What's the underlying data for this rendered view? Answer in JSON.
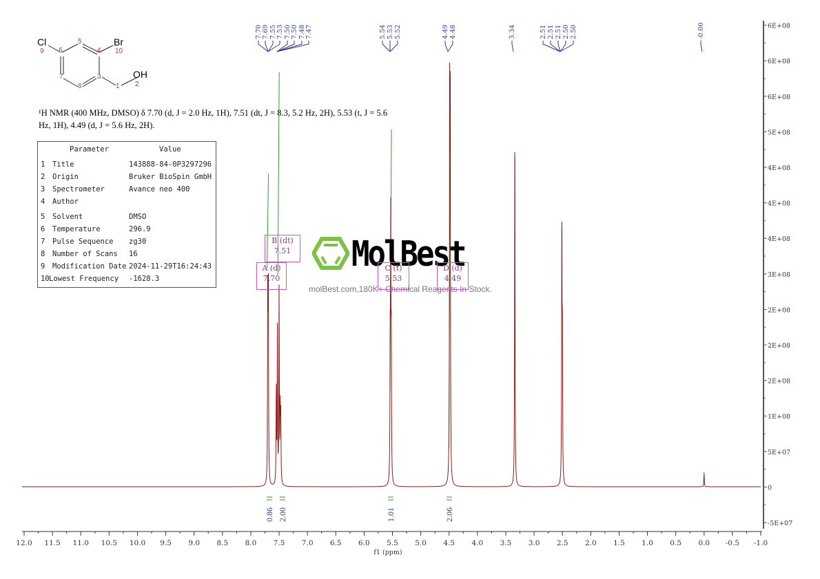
{
  "structure": {
    "atoms": [
      {
        "symbol": "Cl",
        "num": "9"
      },
      {
        "symbol": "Br",
        "num": "10"
      },
      {
        "symbol": "OH",
        "num": "2"
      }
    ],
    "ring_numbers": [
      "5",
      "4",
      "6",
      "3",
      "7",
      "8",
      "1"
    ]
  },
  "nmr_summary": {
    "line1": "¹H NMR (400 MHz, DMSO) δ 7.70 (d, J = 2.0 Hz, 1H), 7.51 (dt, J = 8.3, 5.2 Hz, 2H), 5.53 (t, J = 5.6",
    "line2": "Hz, 1H), 4.49 (d, J = 5.6 Hz, 2H)."
  },
  "param_table": {
    "header_param": "Parameter",
    "header_value": "Value",
    "rows": [
      {
        "idx": "1",
        "param": "Title",
        "value": "143888-84-0P3297296"
      },
      {
        "idx": "2",
        "param": "Origin",
        "value": "Bruker BioSpin GmbH"
      },
      {
        "idx": "3",
        "param": "Spectrometer",
        "value": "Avance neo 400"
      },
      {
        "idx": "4",
        "param": "Author",
        "value": ""
      },
      {
        "idx": "5",
        "param": "Solvent",
        "value": "DMSO"
      },
      {
        "idx": "6",
        "param": "Temperature",
        "value": "296.9"
      },
      {
        "idx": "7",
        "param": "Pulse Sequence",
        "value": "zg30"
      },
      {
        "idx": "8",
        "param": "Number of Scans",
        "value": "16"
      },
      {
        "idx": "9",
        "param": "Modification Date",
        "value": "2024-11-29T16:24:43"
      },
      {
        "idx": "10",
        "param": "Lowest Frequency",
        "value": "-1628.3"
      }
    ]
  },
  "annotations": [
    {
      "label": "A (d)",
      "value": "7.70"
    },
    {
      "label": "B (dt)",
      "value": "7.51"
    },
    {
      "label": "C (t)",
      "value": "5.53"
    },
    {
      "label": "D (d)",
      "value": "4.49"
    }
  ],
  "watermark": {
    "logo_text": "MolBest",
    "tagline": "molBest.com,180K+ Chemical Reagents In Stock."
  },
  "colors": {
    "spectrum": "#8b1a1a",
    "peak_labels": "#2b3a8f",
    "integral": "#2e9e2e",
    "annotation_box": "#cc55cc",
    "logo_green": "#7dc242"
  },
  "chart_data": {
    "type": "line",
    "title": "¹H NMR (400 MHz, DMSO)",
    "xlabel": "f1 (ppm)",
    "ylabel": "",
    "xlim": [
      12.0,
      -1.0
    ],
    "ylim": [
      -60000000.0,
      650000000.0
    ],
    "x_ticks": [
      "12.0",
      "11.5",
      "11.0",
      "10.5",
      "10.0",
      "9.5",
      "9.0",
      "8.5",
      "8.0",
      "7.5",
      "7.0",
      "6.5",
      "6.0",
      "5.5",
      "5.0",
      "4.5",
      "4.0",
      "3.5",
      "3.0",
      "2.5",
      "2.0",
      "1.5",
      "1.0",
      "0.5",
      "0.0",
      "-0.5",
      "-1.0"
    ],
    "y_ticks": [
      "-5E+07",
      "0",
      "5E+07",
      "1E+08",
      "2E+08",
      "2E+08",
      "2E+08",
      "3E+08",
      "4E+08",
      "4E+08",
      "4E+08",
      "5E+08",
      "6E+08",
      "6E+08",
      "6E+08"
    ],
    "peak_labels": [
      {
        "group": "7.70-7.47",
        "values": [
          "7.70",
          "7.69",
          "7.55",
          "7.53",
          "7.50",
          "7.50",
          "7.48",
          "7.47"
        ]
      },
      {
        "group": "5.54-5.52",
        "values": [
          "5.54",
          "5.53",
          "5.52"
        ]
      },
      {
        "group": "4.49-4.48",
        "values": [
          "4.49",
          "4.48"
        ]
      },
      {
        "group": "3.34",
        "values": [
          "3.34"
        ]
      },
      {
        "group": "2.51-2.50",
        "values": [
          "2.51",
          "2.51",
          "2.51",
          "2.50",
          "2.50"
        ]
      },
      {
        "group": "0.00",
        "values": [
          "-0.00"
        ]
      }
    ],
    "peaks": [
      {
        "ppm": 7.7,
        "intensity": 275000000.0
      },
      {
        "ppm": 7.69,
        "intensity": 275000000.0
      },
      {
        "ppm": 7.55,
        "intensity": 135000000.0
      },
      {
        "ppm": 7.53,
        "intensity": 225000000.0
      },
      {
        "ppm": 7.5,
        "intensity": 275000000.0
      },
      {
        "ppm": 7.48,
        "intensity": 100000000.0
      },
      {
        "ppm": 7.47,
        "intensity": 90000000.0
      },
      {
        "ppm": 5.54,
        "intensity": 180000000.0
      },
      {
        "ppm": 5.53,
        "intensity": 350000000.0
      },
      {
        "ppm": 5.52,
        "intensity": 180000000.0
      },
      {
        "ppm": 4.49,
        "intensity": 530000000.0
      },
      {
        "ppm": 4.48,
        "intensity": 520000000.0
      },
      {
        "ppm": 3.34,
        "intensity": 520000000.0
      },
      {
        "ppm": 2.51,
        "intensity": 370000000.0
      },
      {
        "ppm": 2.5,
        "intensity": 200000000.0
      },
      {
        "ppm": 0.0,
        "intensity": 20000000.0
      }
    ],
    "integrals": [
      {
        "ppm": 7.7,
        "value": "0.86"
      },
      {
        "ppm": 7.51,
        "value": "2.00"
      },
      {
        "ppm": 5.53,
        "value": "1.01"
      },
      {
        "ppm": 4.49,
        "value": "2.06"
      }
    ]
  }
}
